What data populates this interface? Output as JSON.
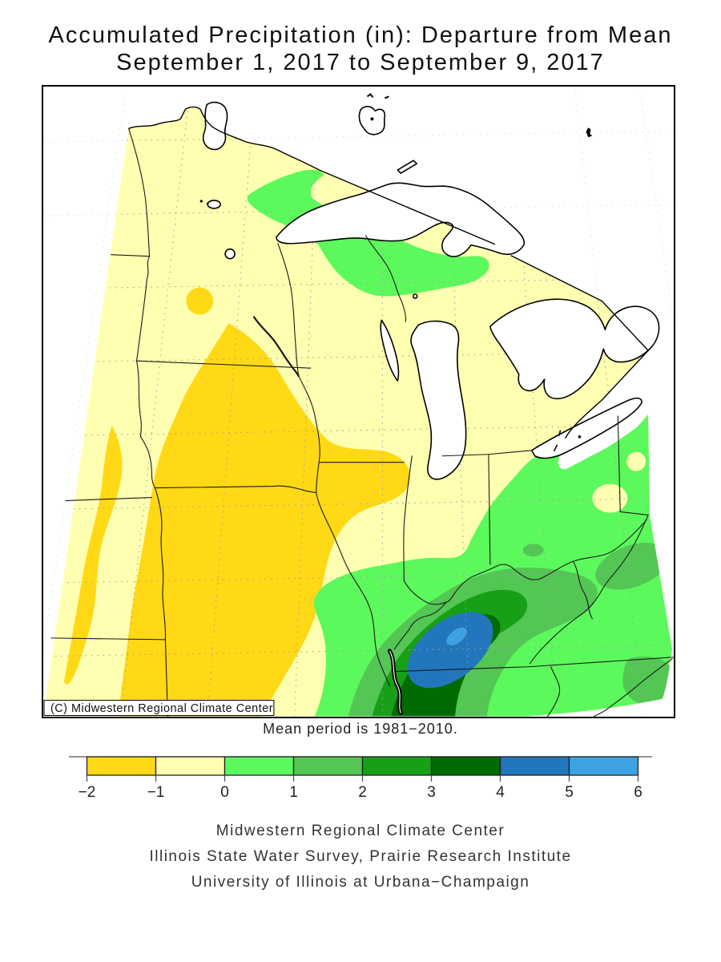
{
  "title": {
    "line1": "Accumulated Precipitation (in): Departure from Mean",
    "line2": "September 1, 2017 to September 9, 2017"
  },
  "map": {
    "copyright": "(C) Midwestern Regional Climate Center",
    "mean_note": "Mean period is 1981−2010."
  },
  "legend": {
    "ticks": [
      "−2",
      "−1",
      "0",
      "1",
      "2",
      "3",
      "4",
      "5",
      "6"
    ],
    "colors": [
      "#FFD916",
      "#FFFFB2",
      "#5CF95C",
      "#54C654",
      "#17A017",
      "#006B00",
      "#2276BC",
      "#3EA2E0"
    ]
  },
  "colors": {
    "gold": "#FFD916",
    "pale": "#FFFFB2",
    "g0": "#5CF95C",
    "g1": "#54C654",
    "g2": "#17A017",
    "g3": "#006B00",
    "b4": "#2276BC",
    "b5": "#3EA2E0",
    "white": "#FFFFFF"
  },
  "footer": {
    "line1": "Midwestern Regional Climate Center",
    "line2": "Illinois State Water Survey, Prairie Research Institute",
    "line3": "University of Illinois at Urbana−Champaign"
  }
}
